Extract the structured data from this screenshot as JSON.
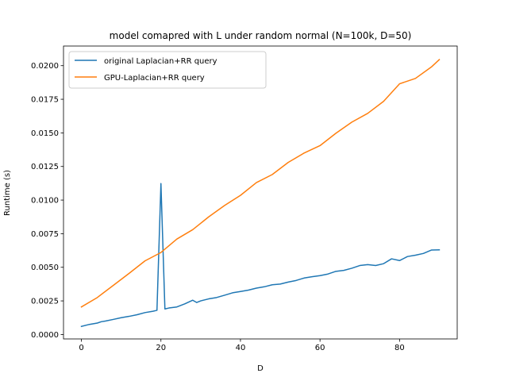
{
  "chart_data": {
    "type": "line",
    "title": "model comapred with L under random normal (N=100k, D=50)",
    "xlabel": "D",
    "ylabel": "Runtime (s)",
    "xlim": [
      -4.5,
      94.5
    ],
    "ylim": [
      -0.00033,
      0.02146
    ],
    "xticks": [
      0,
      20,
      40,
      60,
      80
    ],
    "xtick_labels": [
      "0",
      "20",
      "40",
      "60",
      "80"
    ],
    "yticks": [
      0.0,
      0.0025,
      0.005,
      0.0075,
      0.01,
      0.0125,
      0.015,
      0.0175,
      0.02
    ],
    "ytick_labels": [
      "0.0000",
      "0.0025",
      "0.0050",
      "0.0075",
      "0.0100",
      "0.0125",
      "0.0150",
      "0.0175",
      "0.0200"
    ],
    "grid": false,
    "legend_position": "upper-left",
    "series": [
      {
        "name": "original Laplacian+RR query",
        "color": "#1f77b4",
        "x": [
          0,
          2,
          4,
          5,
          6,
          8,
          10,
          12,
          14,
          16,
          18,
          19,
          20,
          21,
          22,
          24,
          26,
          28,
          29,
          30,
          32,
          34,
          36,
          38,
          40,
          42,
          44,
          46,
          48,
          50,
          52,
          54,
          56,
          58,
          60,
          62,
          64,
          66,
          68,
          70,
          72,
          74,
          76,
          78,
          80,
          82,
          84,
          86,
          88,
          90
        ],
        "y": [
          0.0006,
          0.00075,
          0.00085,
          0.00095,
          0.001,
          0.00112,
          0.00125,
          0.00135,
          0.00147,
          0.00163,
          0.00173,
          0.0018,
          0.01123,
          0.0019,
          0.00197,
          0.00205,
          0.00228,
          0.00255,
          0.00238,
          0.0025,
          0.00265,
          0.00275,
          0.00292,
          0.0031,
          0.0032,
          0.0033,
          0.00345,
          0.00355,
          0.0037,
          0.00375,
          0.0039,
          0.00402,
          0.0042,
          0.0043,
          0.00438,
          0.0045,
          0.0047,
          0.00477,
          0.00493,
          0.00513,
          0.0052,
          0.00513,
          0.00527,
          0.00563,
          0.0055,
          0.0058,
          0.0059,
          0.00603,
          0.00628,
          0.0063
        ]
      },
      {
        "name": "GPU-Laplacian+RR query",
        "color": "#ff7f0e",
        "x": [
          0,
          4,
          8,
          12,
          16,
          20,
          24,
          28,
          32,
          36,
          40,
          44,
          48,
          52,
          56,
          60,
          64,
          68,
          72,
          76,
          80,
          84,
          88,
          90
        ],
        "y": [
          0.00205,
          0.00275,
          0.00365,
          0.00455,
          0.00548,
          0.0061,
          0.0071,
          0.0078,
          0.00875,
          0.0096,
          0.01035,
          0.0113,
          0.0119,
          0.0128,
          0.0135,
          0.01405,
          0.01497,
          0.0158,
          0.01645,
          0.01735,
          0.01865,
          0.01905,
          0.0199,
          0.02045
        ]
      }
    ]
  }
}
